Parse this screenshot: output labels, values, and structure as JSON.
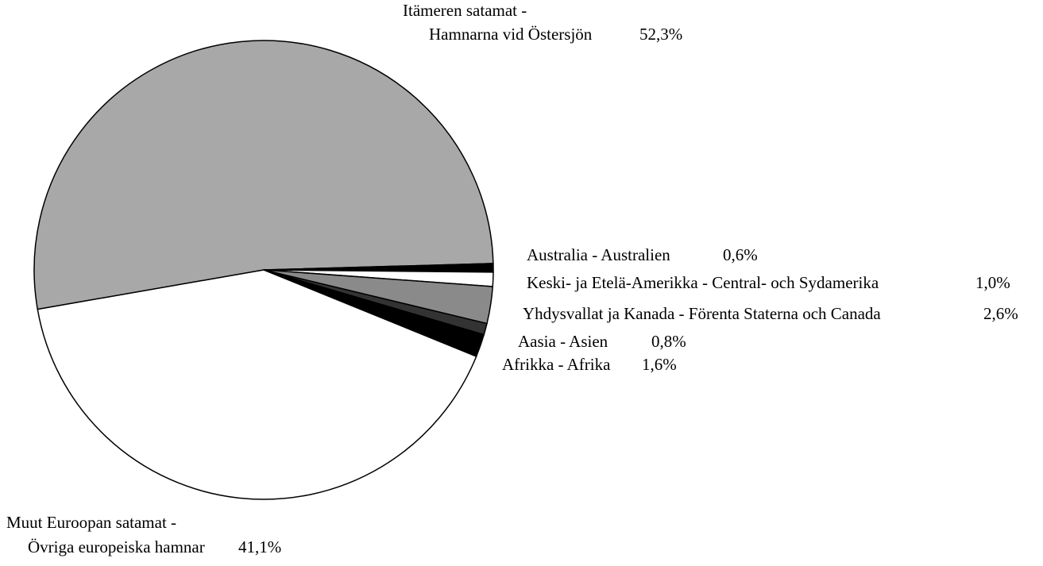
{
  "chart_data": {
    "type": "pie",
    "categories": [
      "Itämeren satamat -\nHamnarna vid Östersjön",
      "Australia - Australien",
      "Keski- ja Etelä-Amerikka - Central- och Sydamerika",
      "Yhdysvallat ja Kanada - Förenta Staterna och Canada",
      "Aasia - Asien",
      "Afrikka - Afrika",
      "Muut Euroopan satamat -\nÖvriga europeiska hamnar"
    ],
    "values": [
      52.3,
      0.6,
      1.0,
      2.6,
      0.8,
      1.6,
      41.1
    ],
    "value_labels": [
      "52,3%",
      "0,6%",
      "1,0%",
      "2,6%",
      "0,8%",
      "1,6%",
      "41,1%"
    ],
    "colors": [
      "#a8a8a8",
      "#000000",
      "#ffffff",
      "#8a8a8a",
      "#333333",
      "#000000",
      "#ffffff"
    ]
  }
}
